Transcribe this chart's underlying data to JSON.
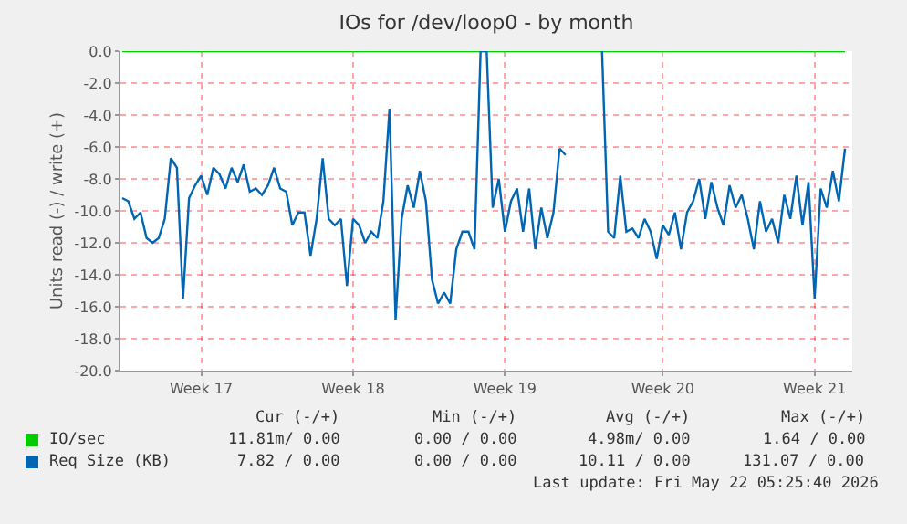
{
  "chart_data": {
    "type": "line",
    "title": "IOs for /dev/loop0 - by month",
    "ylabel": "Units read (-) / write (+)",
    "categories": [
      null,
      null,
      null,
      null,
      null,
      null,
      null,
      null,
      null,
      null,
      null,
      null,
      null,
      "Week 17",
      null,
      null,
      null,
      null,
      null,
      null,
      null,
      null,
      null,
      null,
      null,
      null,
      null,
      null,
      null,
      null,
      null,
      null,
      null,
      null,
      null,
      null,
      null,
      null,
      "Week 18",
      null,
      null,
      null,
      null,
      null,
      null,
      null,
      null,
      null,
      null,
      null,
      null,
      null,
      null,
      null,
      null,
      null,
      null,
      null,
      null,
      null,
      null,
      null,
      null,
      "Week 19",
      null,
      null,
      null,
      null,
      null,
      null,
      null,
      null,
      null,
      null,
      null,
      null,
      null,
      null,
      null,
      null,
      null,
      null,
      null,
      null,
      null,
      null,
      null,
      null,
      null,
      "Week 20",
      null,
      null,
      null,
      null,
      null,
      null,
      null,
      null,
      null,
      null,
      null,
      null,
      null,
      null,
      null,
      null,
      null,
      null,
      null,
      null,
      null,
      null,
      null,
      null,
      "Week 21",
      null,
      null,
      null,
      null,
      null
    ],
    "series": [
      {
        "name": "IO/sec",
        "color": "#00cc00",
        "values": [
          0,
          0,
          0,
          0,
          0,
          0,
          0,
          0,
          0,
          0,
          0,
          0,
          0,
          0,
          0,
          0,
          0,
          0,
          0,
          0,
          0,
          0,
          0,
          0,
          0,
          0,
          0,
          0,
          0,
          0,
          0,
          0,
          0,
          0,
          0,
          0,
          0,
          0,
          0,
          0,
          0,
          0,
          0,
          0,
          0,
          0,
          0,
          0,
          0,
          0,
          0,
          0,
          0,
          0,
          0,
          0,
          0,
          0,
          0,
          0,
          0,
          0,
          0,
          0,
          0,
          0,
          0,
          0,
          0,
          0,
          0,
          0,
          0,
          0,
          0,
          0,
          0,
          0,
          0,
          0,
          0,
          0,
          0,
          0,
          0,
          0,
          0,
          0,
          0,
          0,
          0,
          0,
          0,
          0,
          0,
          0,
          0,
          0,
          0,
          0,
          0,
          0,
          0,
          0,
          0,
          0,
          0,
          0,
          0,
          0,
          0,
          0,
          0,
          0,
          0,
          0,
          0,
          0,
          0,
          0
        ]
      },
      {
        "name": "Req Size (KB)",
        "color": "#0066b3",
        "values": [
          -9.2,
          -9.4,
          -10.5,
          -10.1,
          -11.7,
          -12.0,
          -11.7,
          -10.5,
          -6.7,
          -7.3,
          -15.5,
          -9.2,
          -8.4,
          -7.8,
          -9.0,
          -7.3,
          -7.7,
          -8.6,
          -7.3,
          -8.2,
          -7.1,
          -8.8,
          -8.6,
          -9.0,
          -8.4,
          -7.3,
          -8.6,
          -8.8,
          -10.9,
          -10.1,
          -10.1,
          -12.8,
          -10.5,
          -6.7,
          -10.5,
          -10.9,
          -10.5,
          -14.7,
          -10.5,
          -10.9,
          -12.0,
          -11.3,
          -11.7,
          -9.4,
          -3.6,
          -16.8,
          -10.5,
          -8.4,
          -9.8,
          -7.5,
          -9.4,
          -14.3,
          -15.8,
          -15.1,
          -15.8,
          -12.4,
          -11.3,
          -11.3,
          -12.4,
          0,
          0,
          -9.8,
          -8.0,
          -11.3,
          -9.4,
          -8.6,
          -11.3,
          -8.6,
          -12.4,
          -9.8,
          -11.7,
          -10.1,
          -6.1,
          -6.5,
          null,
          null,
          null,
          null,
          null,
          0,
          -11.3,
          -11.7,
          -7.8,
          -11.3,
          -11.1,
          -11.7,
          -10.5,
          -11.3,
          -13.0,
          -10.9,
          -11.5,
          -10.1,
          -12.4,
          -10.1,
          -9.4,
          -8.0,
          -10.5,
          -8.2,
          -9.8,
          -10.9,
          -8.4,
          -9.8,
          -9.0,
          -10.5,
          -12.4,
          -9.4,
          -11.3,
          -10.5,
          -12.0,
          -9.0,
          -10.5,
          -7.8,
          -10.9,
          -8.2,
          -15.5,
          -8.6,
          -9.8,
          -7.5,
          -9.4,
          -6.1
        ]
      }
    ],
    "ylim": [
      -20,
      0
    ],
    "yticks": [
      {
        "value": 0,
        "label": "0.0"
      },
      {
        "value": -2,
        "label": "-2.0"
      },
      {
        "value": -4,
        "label": "-4.0"
      },
      {
        "value": -6,
        "label": "-6.0"
      },
      {
        "value": -8,
        "label": "-8.0"
      },
      {
        "value": -10,
        "label": "-10.0"
      },
      {
        "value": -12,
        "label": "-12.0"
      },
      {
        "value": -14,
        "label": "-14.0"
      },
      {
        "value": -16,
        "label": "-16.0"
      },
      {
        "value": -18,
        "label": "-18.0"
      },
      {
        "value": -20,
        "label": "-20.0"
      }
    ],
    "grid": true,
    "legend": "bottom",
    "marker": "none",
    "line_style": "solid",
    "annotations": [
      "Cur (-/+)",
      "Min (-/+)",
      "Avg (-/+)",
      "Max (-/+)",
      "11.81m/ 0.00",
      "0.00 / 0.00",
      "4.98m/ 0.00",
      "1.64 / 0.00",
      "7.82 / 0.00",
      "0.00 / 0.00",
      "10.11 / 0.00",
      "131.07 / 0.00",
      "Last update: Fri May 22 05:25:40 2026"
    ]
  }
}
